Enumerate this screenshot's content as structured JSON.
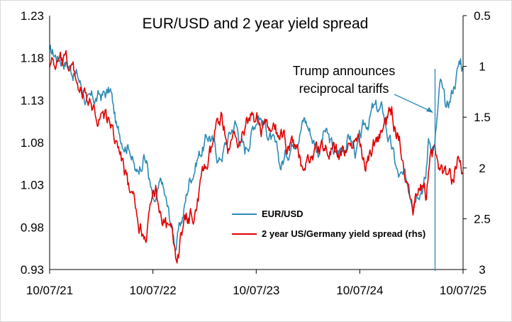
{
  "chart_data": {
    "type": "line",
    "title": "EUR/USD and 2 year yield spread",
    "xlabel": "",
    "ylabel": "",
    "x_ticks": [
      "10/07/21",
      "10/07/22",
      "10/07/23",
      "10/07/24",
      "10/07/25"
    ],
    "xlim": [
      "2021-07-10",
      "2025-07-10"
    ],
    "y_left": {
      "ticks": [
        "1.23",
        "1.18",
        "1.13",
        "1.08",
        "1.03",
        "0.98",
        "0.93"
      ],
      "ylim": [
        0.93,
        1.23
      ]
    },
    "y_right": {
      "ticks": [
        "0.5",
        "1",
        "1.5",
        "2",
        "2.5",
        "3"
      ],
      "ylim": [
        0.5,
        3
      ],
      "inverted": true
    },
    "grid": false,
    "legend_position": "bottom-center",
    "annotation": {
      "text_line1": "Trump announces",
      "text_line2": "reciprocal tariffs",
      "date": "2025-04-02"
    },
    "series": [
      {
        "name": "EUR/USD",
        "axis": "left",
        "color": "#2E8BB5",
        "points": [
          [
            "2021-07-10",
            1.185
          ],
          [
            "2021-09-01",
            1.18
          ],
          [
            "2021-10-15",
            1.16
          ],
          [
            "2021-11-25",
            1.125
          ],
          [
            "2022-01-10",
            1.135
          ],
          [
            "2022-02-10",
            1.14
          ],
          [
            "2022-03-07",
            1.09
          ],
          [
            "2022-04-20",
            1.08
          ],
          [
            "2022-05-12",
            1.04
          ],
          [
            "2022-06-08",
            1.07
          ],
          [
            "2022-06-20",
            1.055
          ],
          [
            "2022-07-14",
            1.0
          ],
          [
            "2022-08-10",
            1.03
          ],
          [
            "2022-09-28",
            0.96
          ],
          [
            "2022-10-25",
            0.995
          ],
          [
            "2022-11-15",
            1.035
          ],
          [
            "2022-12-15",
            1.065
          ],
          [
            "2023-01-26",
            1.09
          ],
          [
            "2023-03-01",
            1.06
          ],
          [
            "2023-04-26",
            1.105
          ],
          [
            "2023-05-31",
            1.07
          ],
          [
            "2023-07-18",
            1.12
          ],
          [
            "2023-08-31",
            1.085
          ],
          [
            "2023-10-03",
            1.05
          ],
          [
            "2023-11-29",
            1.095
          ],
          [
            "2023-12-28",
            1.11
          ],
          [
            "2024-02-14",
            1.072
          ],
          [
            "2024-03-08",
            1.094
          ],
          [
            "2024-04-16",
            1.062
          ],
          [
            "2024-06-04",
            1.089
          ],
          [
            "2024-06-26",
            1.068
          ],
          [
            "2024-08-23",
            1.118
          ],
          [
            "2024-09-30",
            1.115
          ],
          [
            "2024-11-22",
            1.04
          ],
          [
            "2025-01-13",
            1.022
          ],
          [
            "2025-02-03",
            1.035
          ],
          [
            "2025-02-28",
            1.04
          ],
          [
            "2025-03-10",
            1.085
          ],
          [
            "2025-04-01",
            1.08
          ],
          [
            "2025-04-21",
            1.15
          ],
          [
            "2025-05-12",
            1.11
          ],
          [
            "2025-06-12",
            1.155
          ],
          [
            "2025-07-01",
            1.18
          ],
          [
            "2025-07-10",
            1.17
          ]
        ]
      },
      {
        "name": "2 year US/Germany yield spread (rhs)",
        "axis": "right",
        "color": "#E00000",
        "points": [
          [
            "2021-07-10",
            0.95
          ],
          [
            "2021-10-01",
            1.05
          ],
          [
            "2021-12-01",
            1.45
          ],
          [
            "2022-01-15",
            1.45
          ],
          [
            "2022-02-28",
            1.7
          ],
          [
            "2022-03-31",
            2.05
          ],
          [
            "2022-04-29",
            2.4
          ],
          [
            "2022-06-01",
            2.6
          ],
          [
            "2022-06-20",
            2.55
          ],
          [
            "2022-07-20",
            2.25
          ],
          [
            "2022-08-31",
            2.6
          ],
          [
            "2022-10-01",
            2.9
          ],
          [
            "2022-10-25",
            2.6
          ],
          [
            "2022-11-30",
            2.45
          ],
          [
            "2023-01-03",
            2.1
          ],
          [
            "2023-02-01",
            1.9
          ],
          [
            "2023-03-08",
            1.45
          ],
          [
            "2023-04-03",
            1.8
          ],
          [
            "2023-05-31",
            1.6
          ],
          [
            "2023-06-30",
            1.5
          ],
          [
            "2023-09-01",
            1.7
          ],
          [
            "2023-11-01",
            1.75
          ],
          [
            "2023-12-15",
            1.95
          ],
          [
            "2024-01-31",
            1.85
          ],
          [
            "2024-03-01",
            1.8
          ],
          [
            "2024-04-30",
            1.9
          ],
          [
            "2024-06-14",
            1.75
          ],
          [
            "2024-07-31",
            1.9
          ],
          [
            "2024-09-16",
            1.7
          ],
          [
            "2024-10-31",
            1.45
          ],
          [
            "2024-11-22",
            1.65
          ],
          [
            "2025-01-14",
            2.3
          ],
          [
            "2025-02-10",
            2.1
          ],
          [
            "2025-02-28",
            2.25
          ],
          [
            "2025-03-20",
            1.75
          ],
          [
            "2025-04-07",
            1.9
          ],
          [
            "2025-05-01",
            2.05
          ],
          [
            "2025-06-02",
            2.2
          ],
          [
            "2025-06-20",
            1.9
          ],
          [
            "2025-07-10",
            2.05
          ]
        ]
      }
    ]
  }
}
